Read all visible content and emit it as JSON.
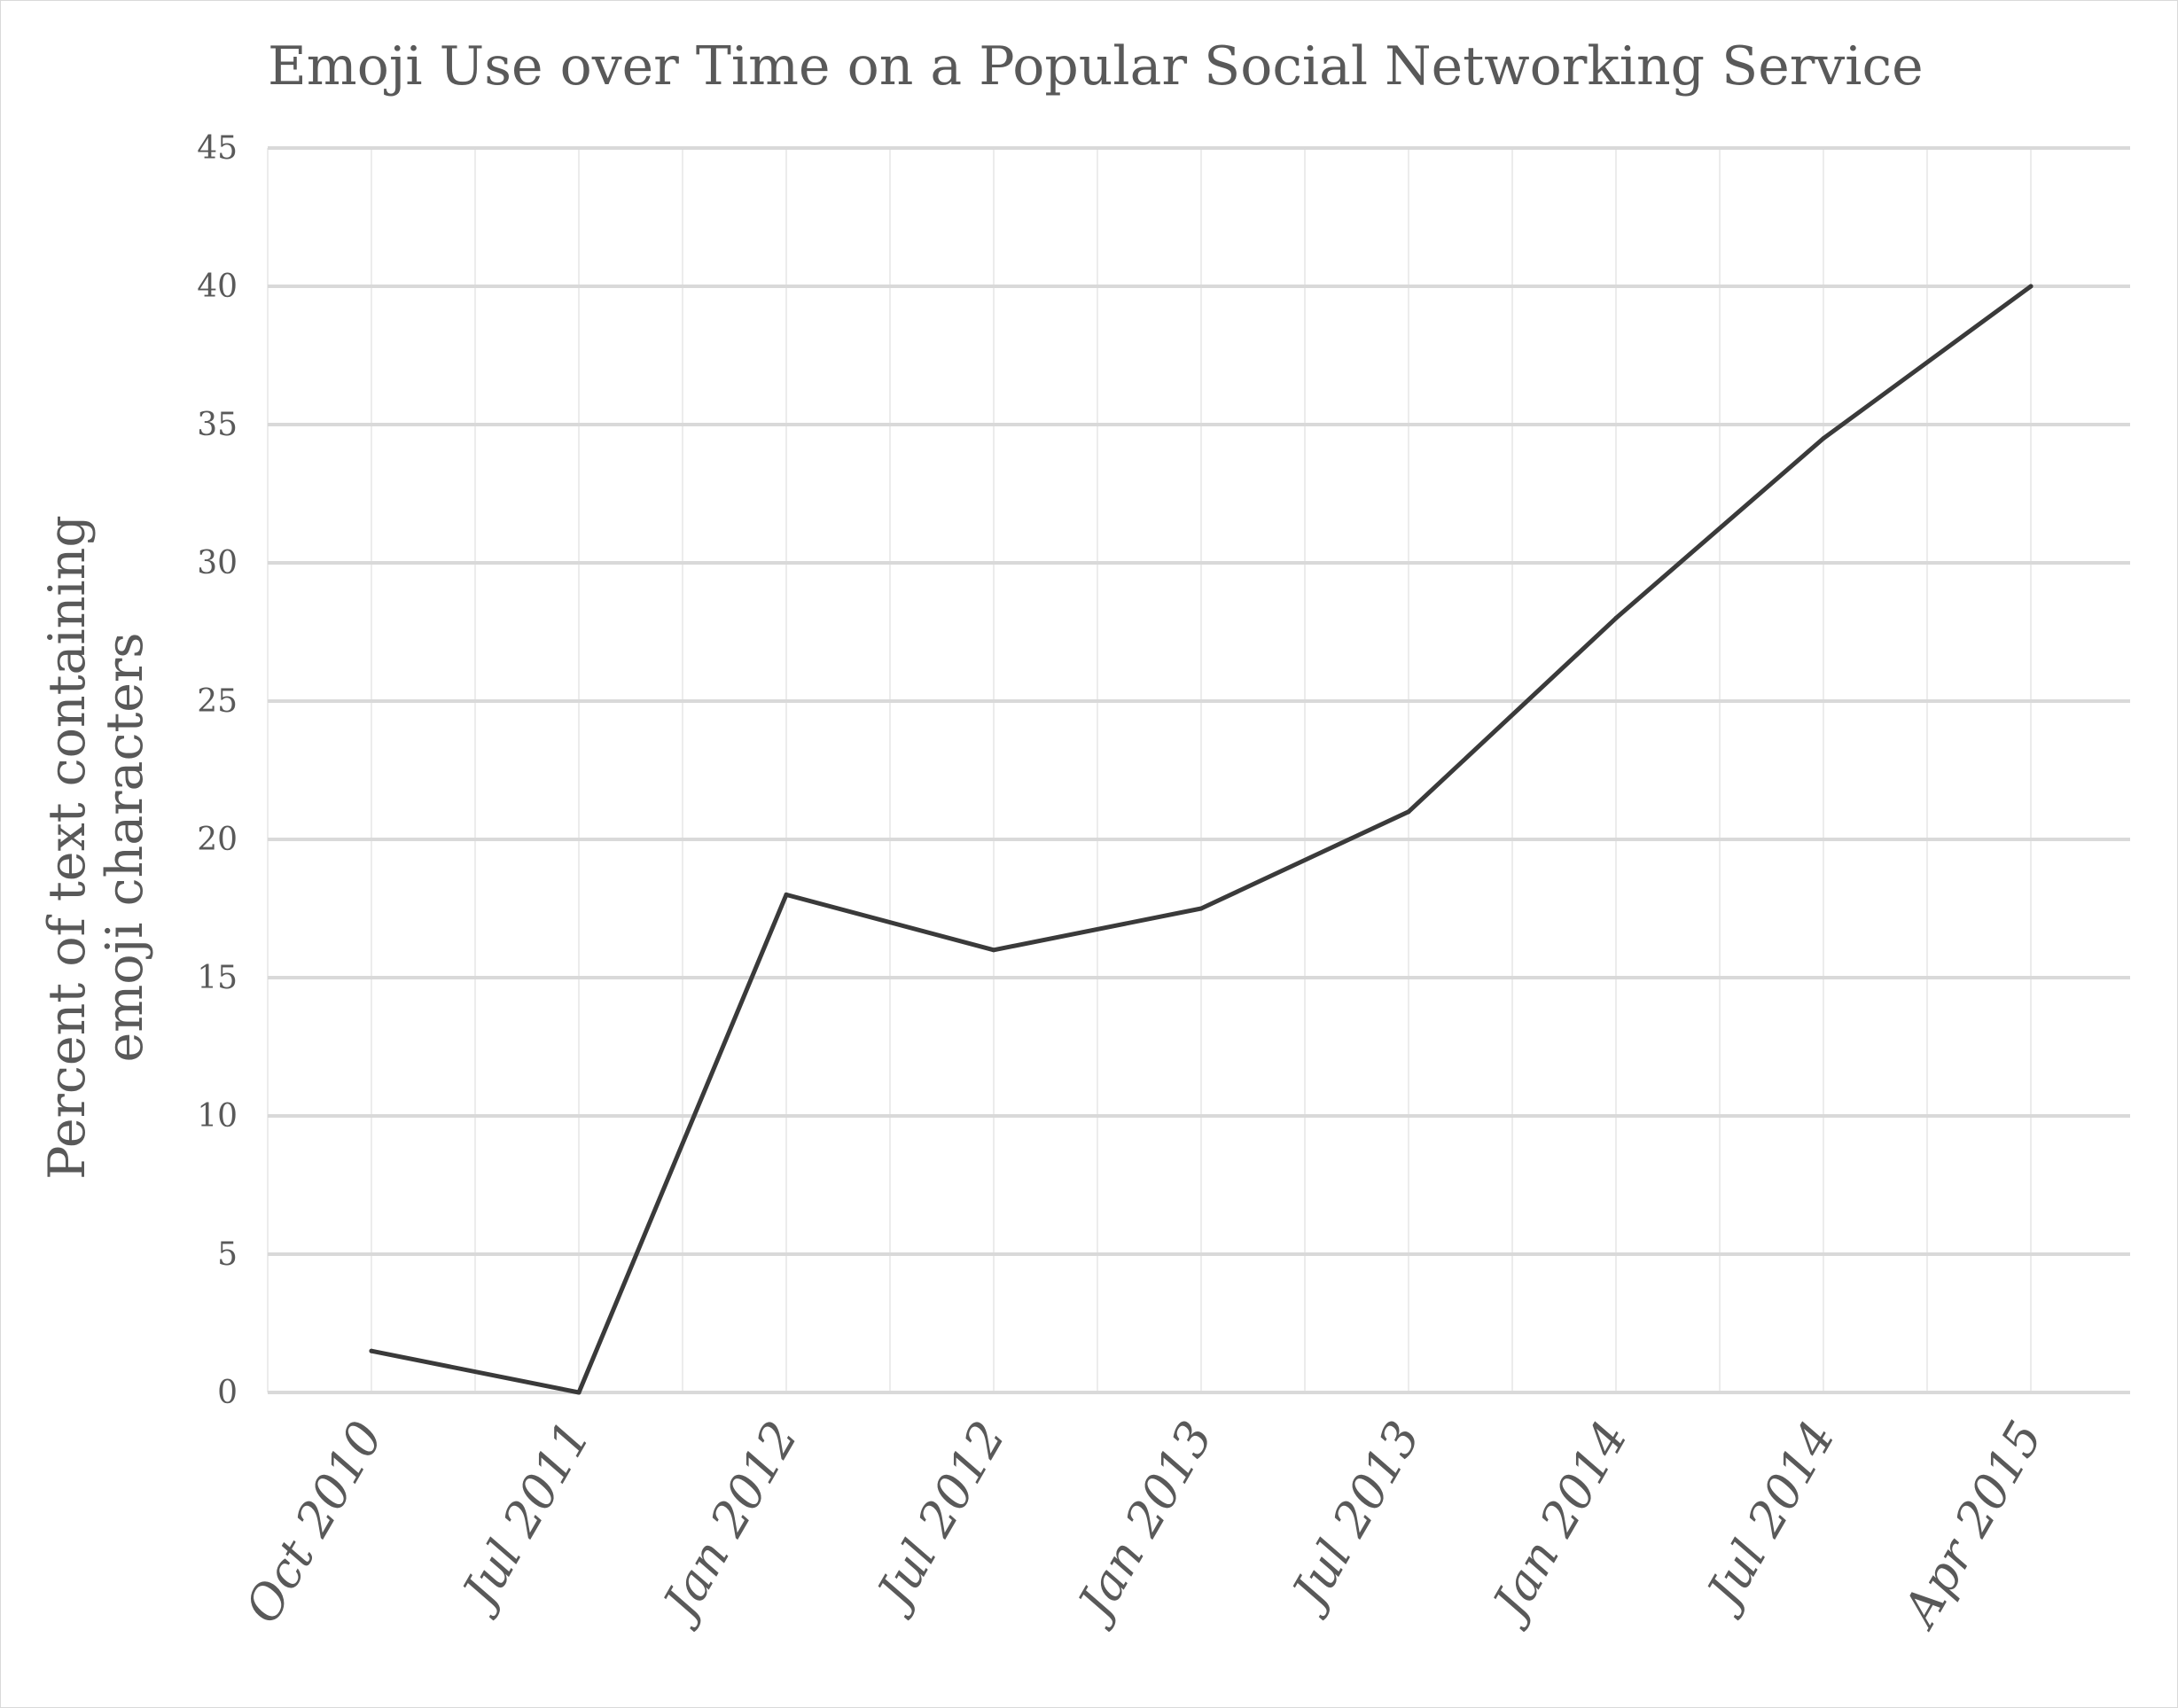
{
  "chart_data": {
    "type": "line",
    "title": "Emoji Use over Time on a Popular Social Networking Service",
    "xlabel": "",
    "ylabel": "Percent of text containing emoji characters",
    "ylabel_lines": [
      "Percent of text containing",
      "emoji characters"
    ],
    "categories": [
      "Oct 2010",
      "Jul 2011",
      "Jan 2012",
      "Jul 2012",
      "Jan 2013",
      "Jul 2013",
      "Jan 2014",
      "Jul 2014",
      "Apr 2015"
    ],
    "values": [
      1.5,
      0,
      18,
      16,
      17.5,
      21,
      28,
      34.5,
      40
    ],
    "ylim": [
      0,
      45
    ],
    "yticks": [
      0,
      5,
      10,
      15,
      20,
      25,
      30,
      35,
      40,
      45
    ],
    "grid": true,
    "legend": "none",
    "line_color": "#3a3a3a",
    "grid_color": "#d9d9d9",
    "minor_grid_color": "#ececec"
  }
}
